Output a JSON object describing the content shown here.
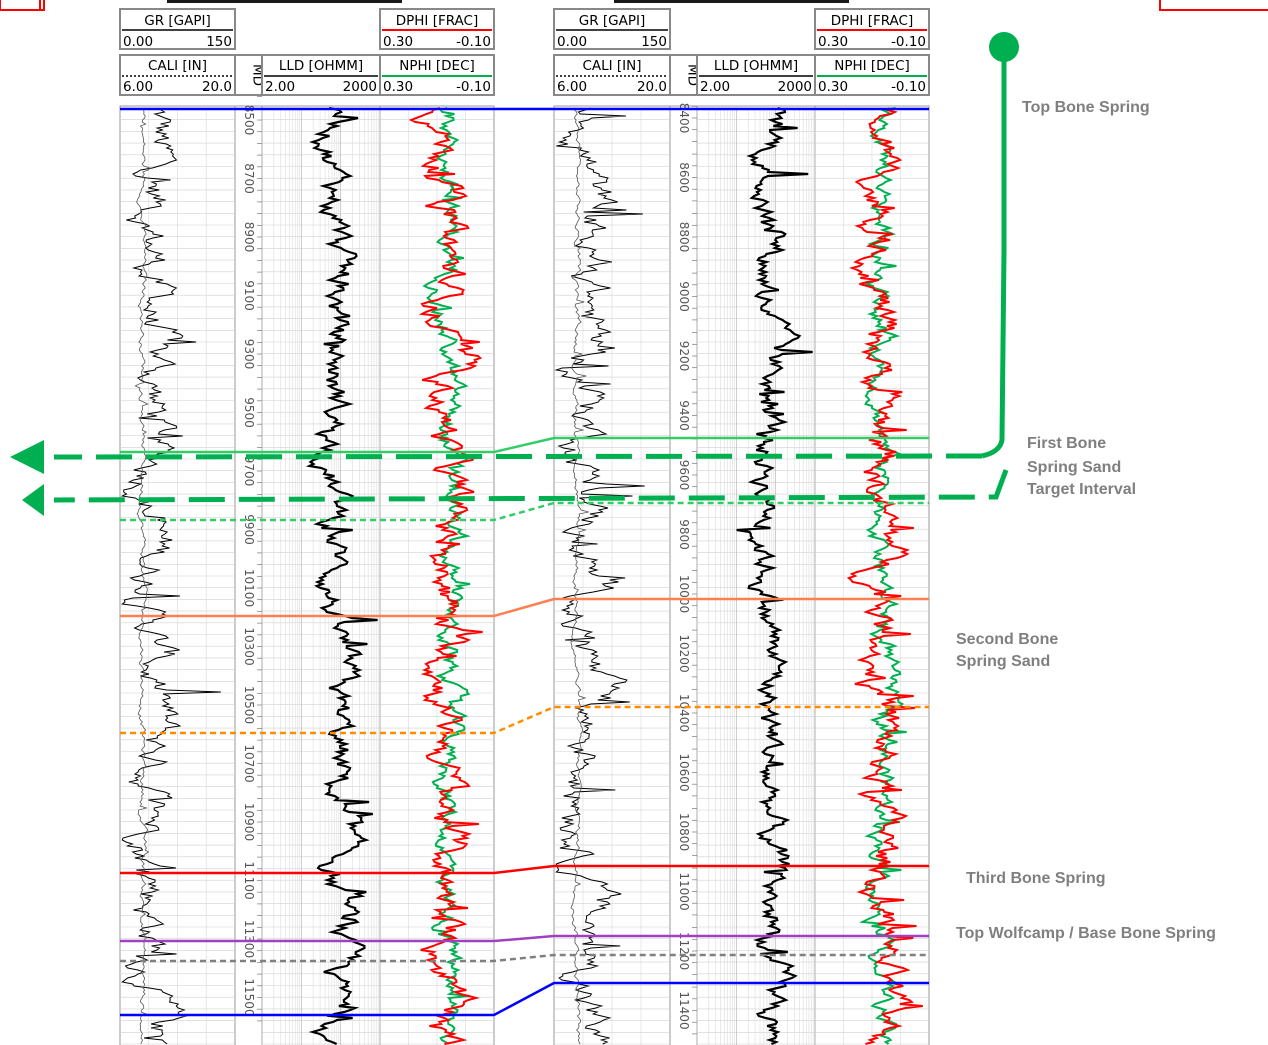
{
  "wells": [
    {
      "tracks": {
        "gr": {
          "mnemonic": "GR [GAPI]",
          "left": "0.00",
          "right": "150",
          "color": "#000000"
        },
        "cali": {
          "mnemonic": "CALI [IN]",
          "left": "6.00",
          "right": "20.0",
          "color": "#000000"
        },
        "md": {
          "mnemonic": "MD"
        },
        "lld": {
          "mnemonic": "LLD [OHMM]",
          "left": "2.00",
          "right": "2000",
          "color": "#000000"
        },
        "dphi": {
          "mnemonic": "DPHI [FRAC]",
          "left": "0.30",
          "right": "-0.10",
          "color": "#ff0000"
        },
        "nphi": {
          "mnemonic": "NPHI [DEC]",
          "left": "0.30",
          "right": "-0.10",
          "color": "#00b050"
        }
      },
      "depth_labels": [
        "8500",
        "8700",
        "8900",
        "9100",
        "9300",
        "9500",
        "9700",
        "9900",
        "10100",
        "10300",
        "10500",
        "10700",
        "10900",
        "11100",
        "11300",
        "11500"
      ]
    },
    {
      "tracks": {
        "gr": {
          "mnemonic": "GR [GAPI]",
          "left": "0.00",
          "right": "150",
          "color": "#000000"
        },
        "cali": {
          "mnemonic": "CALI [IN]",
          "left": "6.00",
          "right": "20.0",
          "color": "#000000"
        },
        "md": {
          "mnemonic": "MD"
        },
        "lld": {
          "mnemonic": "LLD [OHMM]",
          "left": "2.00",
          "right": "2000",
          "color": "#000000"
        },
        "dphi": {
          "mnemonic": "DPHI [FRAC]",
          "left": "0.30",
          "right": "-0.10",
          "color": "#ff0000"
        },
        "nphi": {
          "mnemonic": "NPHI [DEC]",
          "left": "0.30",
          "right": "-0.10",
          "color": "#00b050"
        }
      },
      "depth_labels": [
        "8400",
        "8600",
        "8800",
        "9000",
        "9200",
        "9400",
        "9600",
        "9800",
        "10000",
        "10200",
        "10400",
        "10600",
        "10800",
        "11000",
        "11200",
        "11400"
      ]
    }
  ],
  "formations": [
    {
      "id": "top-bone-spring",
      "label": "Top Bone Spring",
      "color": "#0000ff",
      "style": "solid"
    },
    {
      "id": "first-bone-spring-top",
      "label": "First Bone Spring Sand",
      "color": "#33cc66",
      "style": "solid"
    },
    {
      "id": "first-bone-spring-base",
      "label": "",
      "color": "#33cc66",
      "style": "dashed"
    },
    {
      "id": "second-bone-spring-top",
      "label": "Second Bone Spring Sand",
      "color": "#ff7f50",
      "style": "solid"
    },
    {
      "id": "second-bone-spring-base",
      "label": "",
      "color": "#ff8c00",
      "style": "dashed"
    },
    {
      "id": "third-bone-spring",
      "label": "Third Bone Spring",
      "color": "#ff0000",
      "style": "solid"
    },
    {
      "id": "top-wolfcamp",
      "label": "Top Wolfcamp / Base Bone Spring",
      "color": "#a040c0",
      "style": "solid"
    },
    {
      "id": "grey-marker",
      "label": "",
      "color": "#808080",
      "style": "dashed"
    },
    {
      "id": "bottom-blue",
      "label": "",
      "color": "#0000ff",
      "style": "solid"
    }
  ],
  "annotations": {
    "top_bone_spring": "Top Bone Spring",
    "first_bone_spring": [
      "First Bone",
      "Spring Sand",
      "Target Interval"
    ],
    "second_bone_spring": [
      "Second Bone",
      "Spring Sand"
    ],
    "third_bone_spring": "Third Bone Spring",
    "top_wolfcamp": "Top Wolfcamp / Base Bone Spring"
  },
  "well_path": {
    "color": "#00b050",
    "laterals": 2
  }
}
